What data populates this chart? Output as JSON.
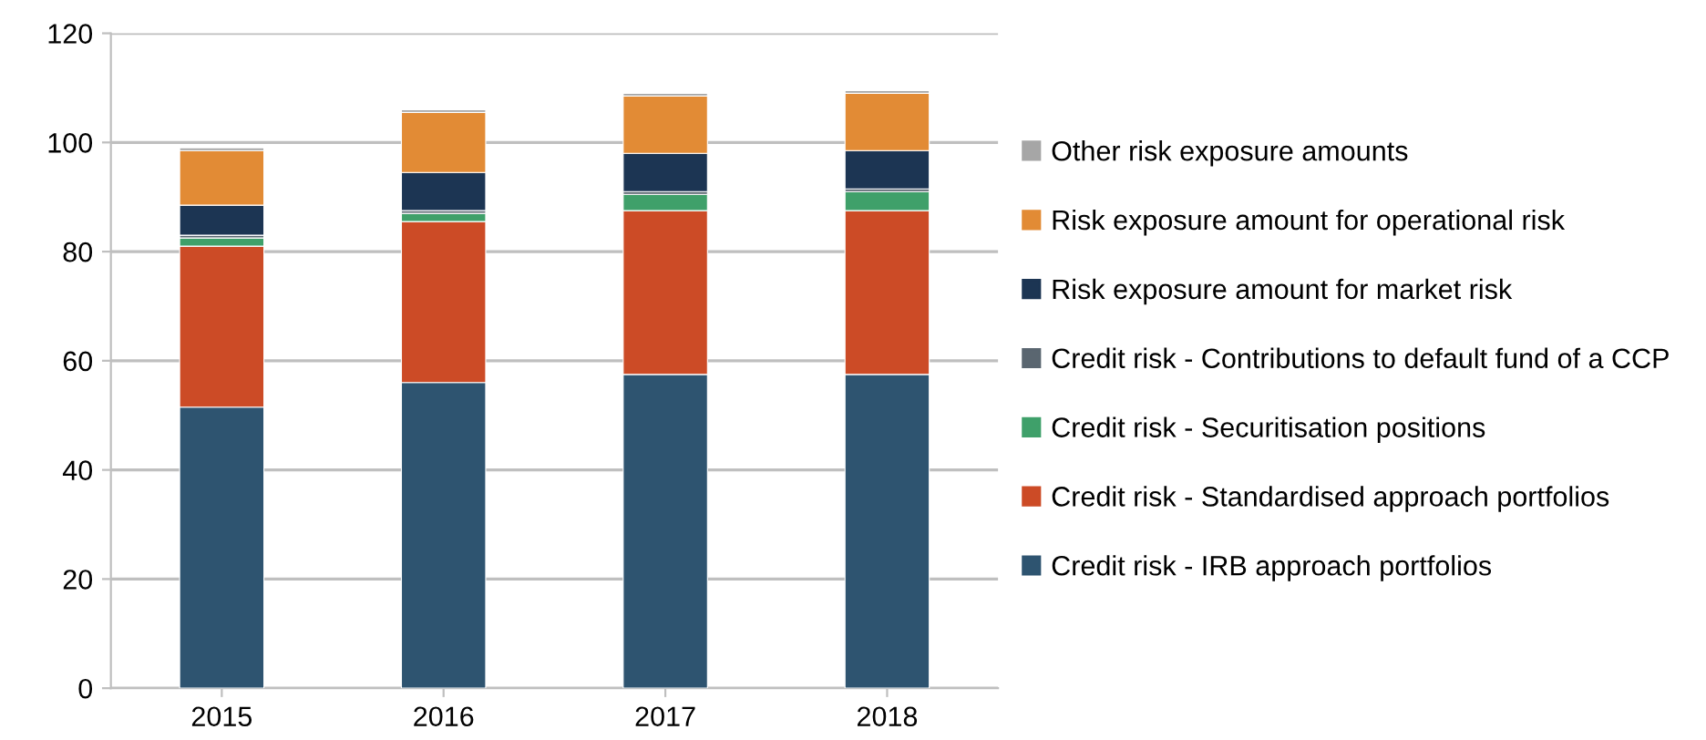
{
  "chart_data": {
    "type": "bar",
    "stacked": true,
    "categories": [
      "2015",
      "2016",
      "2017",
      "2018"
    ],
    "series": [
      {
        "name": "Credit risk - IRB approach portfolios",
        "color": "#2e5470",
        "values": [
          51.5,
          56,
          57.5,
          57.5
        ]
      },
      {
        "name": "Credit risk - Standardised approach portfolios",
        "color": "#cc4b26",
        "values": [
          29.5,
          29.5,
          30,
          30
        ]
      },
      {
        "name": "Credit risk - Securitisation positions",
        "color": "#3fa06a",
        "values": [
          1.5,
          1.5,
          3,
          3.5
        ]
      },
      {
        "name": "Credit risk - Contributions to default fund of a CCP",
        "color": "#5a6670",
        "values": [
          0.5,
          0.5,
          0.5,
          0.5
        ]
      },
      {
        "name": "Risk exposure amount for market risk",
        "color": "#1c3553",
        "values": [
          5.5,
          7,
          7,
          7
        ]
      },
      {
        "name": "Risk exposure amount for operational risk",
        "color": "#e28b35",
        "values": [
          10,
          11,
          10.5,
          10.5
        ]
      },
      {
        "name": "Other risk exposure amounts",
        "color": "#a6a6a6",
        "values": [
          0.5,
          0.5,
          0.5,
          0.5
        ]
      }
    ],
    "ylim": [
      0,
      120
    ],
    "yticks": [
      0,
      20,
      40,
      60,
      80,
      100,
      120
    ],
    "grid": "y",
    "legend": "right"
  }
}
